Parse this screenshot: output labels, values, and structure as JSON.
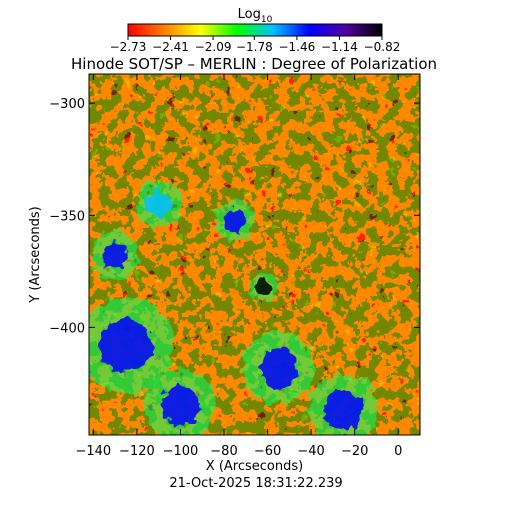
{
  "chart_data": {
    "type": "heatmap",
    "title": "Hinode SOT/SP – MERLIN : Degree of Polarization",
    "xlabel": "X (Arcseconds)",
    "ylabel": "Y (Arcseconds)",
    "xlim": [
      -142,
      10
    ],
    "ylim": [
      -448,
      -287
    ],
    "x_ticks": [
      -140,
      -120,
      -100,
      -80,
      -60,
      -40,
      -20,
      0
    ],
    "y_ticks": [
      -300,
      -350,
      -400
    ],
    "x_tick_labels": [
      "−140",
      "−120",
      "−100",
      "−80",
      "−60",
      "−40",
      "−20",
      "0"
    ],
    "y_tick_labels": [
      "−300",
      "−350",
      "−400"
    ],
    "timestamp": "21-Oct-2025 18:31:22.239",
    "colorbar": {
      "label_base": "Log",
      "label_sub": "10",
      "range": [
        -2.73,
        -0.82
      ],
      "ticks": [
        -2.73,
        -2.41,
        -2.09,
        -1.78,
        -1.46,
        -1.14,
        -0.82
      ],
      "tick_labels": [
        "−2.73",
        "−2.41",
        "−2.09",
        "−1.78",
        "−1.46",
        "−1.14",
        "−0.82"
      ],
      "colors": [
        "#ff0000",
        "#ff8000",
        "#ffff00",
        "#00ff00",
        "#00c0ff",
        "#0000ff",
        "#5000a0",
        "#000000"
      ]
    },
    "features": [
      {
        "x": -62,
        "y": -382,
        "r": 3.5,
        "value": -0.85
      },
      {
        "x": -130,
        "y": -368,
        "r": 6,
        "value": -1.25
      },
      {
        "x": -125,
        "y": -408,
        "r": 12,
        "value": -1.35
      },
      {
        "x": -100,
        "y": -435,
        "r": 9,
        "value": -1.4
      },
      {
        "x": -55,
        "y": -418,
        "r": 9,
        "value": -1.4
      },
      {
        "x": -25,
        "y": -437,
        "r": 9,
        "value": -1.4
      },
      {
        "x": -75,
        "y": -352,
        "r": 5,
        "value": -1.5
      },
      {
        "x": -110,
        "y": -345,
        "r": 6,
        "value": -1.7
      }
    ]
  }
}
